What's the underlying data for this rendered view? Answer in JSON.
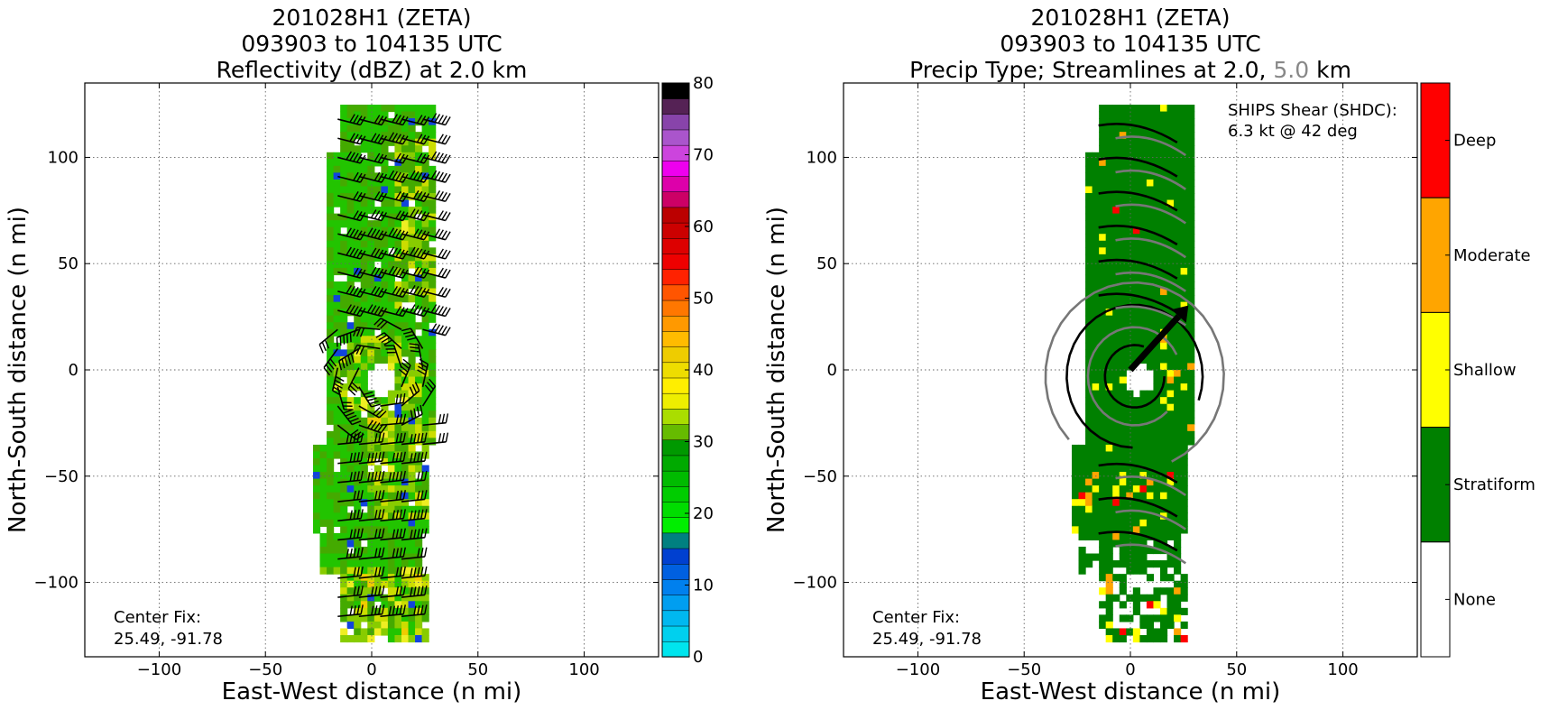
{
  "left_panel": {
    "title_lines": [
      "201028H1 (ZETA)",
      "093903 to 104135 UTC",
      "Reflectivity (dBZ) at 2.0 km"
    ],
    "xlabel": "East-West distance (n mi)",
    "ylabel": "North-South distance (n mi)",
    "center_fix": [
      "Center Fix:",
      "25.49, -91.78"
    ],
    "colorbar": {
      "ticks": [
        "0",
        "10",
        "20",
        "30",
        "40",
        "50",
        "60",
        "70",
        "80"
      ],
      "colors": [
        "#00e5ee",
        "#00d0ee",
        "#00b8f0",
        "#009ef0",
        "#0080ee",
        "#0060e0",
        "#0040d0",
        "#008080",
        "#00ee00",
        "#00dd00",
        "#00cc00",
        "#00bb00",
        "#00aa00",
        "#009900",
        "#66bb00",
        "#aadd00",
        "#eeee00",
        "#ffee00",
        "#eedd00",
        "#eecc00",
        "#ffbb00",
        "#ff9900",
        "#ff7700",
        "#ff5500",
        "#ff2200",
        "#ee0000",
        "#dd0000",
        "#cc0000",
        "#bb0000",
        "#cc0066",
        "#dd00aa",
        "#ee00ee",
        "#cc44dd",
        "#aa55cc",
        "#8844aa",
        "#552255",
        "#000000"
      ]
    }
  },
  "right_panel": {
    "title_lines": [
      "201028H1 (ZETA)",
      "093903 to 104135 UTC"
    ],
    "title_line3_parts": [
      "Precip Type; Streamlines at 2.0, ",
      "5.0",
      " km"
    ],
    "xlabel": "East-West distance (n mi)",
    "ylabel": "North-South distance (n mi)",
    "center_fix": [
      "Center Fix:",
      "25.49, -91.78"
    ],
    "ships_shear": [
      "SHIPS Shear (SHDC):",
      "6.3 kt @ 42 deg"
    ],
    "categories": [
      {
        "name": "Deep",
        "color": "#ff0000"
      },
      {
        "name": "Moderate",
        "color": "#ffa500"
      },
      {
        "name": "Shallow",
        "color": "#ffff00"
      },
      {
        "name": "Stratiform",
        "color": "#008000"
      },
      {
        "name": "None",
        "color": "#ffffff"
      }
    ]
  },
  "chart_data": [
    {
      "type": "heatmap",
      "title": "201028H1 (ZETA) 093903 to 104135 UTC Reflectivity (dBZ) at 2.0 km",
      "xlabel": "East-West distance (n mi)",
      "ylabel": "North-South distance (n mi)",
      "xlim": [
        -135,
        135
      ],
      "ylim": [
        -135,
        135
      ],
      "xticks": [
        -100,
        -50,
        0,
        50,
        100
      ],
      "yticks": [
        -100,
        -50,
        0,
        50,
        100
      ],
      "grid": true,
      "colorbar_range": [
        0,
        80
      ],
      "center_fix": [
        25.49,
        -91.78
      ]
    },
    {
      "type": "heatmap",
      "title": "201028H1 (ZETA) 093903 to 104135 UTC Precip Type; Streamlines at 2.0, 5.0 km",
      "xlabel": "East-West distance (n mi)",
      "ylabel": "North-South distance (n mi)",
      "xlim": [
        -135,
        135
      ],
      "ylim": [
        -135,
        135
      ],
      "xticks": [
        -100,
        -50,
        0,
        50,
        100
      ],
      "yticks": [
        -100,
        -50,
        0,
        50,
        100
      ],
      "grid": true,
      "categories": [
        "None",
        "Stratiform",
        "Shallow",
        "Moderate",
        "Deep"
      ],
      "ships_shear_kt": 6.3,
      "ships_shear_deg": 42,
      "center_fix": [
        25.49,
        -91.78
      ]
    }
  ]
}
